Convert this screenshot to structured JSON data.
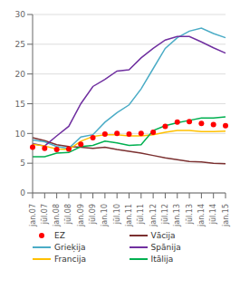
{
  "chart_data": {
    "type": "line",
    "categories": [
      "jan.07",
      "jūl.07",
      "jan.08",
      "jūl.08",
      "jan.09",
      "jūl.09",
      "jan.10",
      "jūl.10",
      "jan.11",
      "jūl.11",
      "jan.12",
      "jūl.12",
      "jan.13",
      "jūl.13",
      "jan.14",
      "jūl.14",
      "jan.15"
    ],
    "series": [
      {
        "name": "EZ",
        "color": "#ff0000",
        "line_style": "none",
        "marker": "circle",
        "values": [
          7.7,
          7.5,
          7.3,
          7.4,
          8.2,
          9.3,
          9.9,
          10.0,
          9.9,
          10.0,
          10.2,
          11.2,
          11.9,
          12.0,
          11.7,
          11.5,
          11.3
        ]
      },
      {
        "name": "Vācija",
        "color": "#7b3030",
        "line_style": "solid",
        "marker": "none",
        "values": [
          9.3,
          8.8,
          8.1,
          7.8,
          7.7,
          7.5,
          7.7,
          7.3,
          7.0,
          6.7,
          6.3,
          5.9,
          5.6,
          5.3,
          5.2,
          5.0,
          4.9
        ]
      },
      {
        "name": "Grieķija",
        "color": "#4bacc6",
        "line_style": "solid",
        "marker": "none",
        "values": [
          8.9,
          8.6,
          7.8,
          7.5,
          9.4,
          9.8,
          11.9,
          13.5,
          14.8,
          17.5,
          20.9,
          24.3,
          26.1,
          27.2,
          27.7,
          26.8,
          26.1
        ]
      },
      {
        "name": "Spānija",
        "color": "#7030a0",
        "line_style": "solid",
        "marker": "none",
        "values": [
          8.3,
          7.9,
          9.6,
          11.2,
          15.0,
          17.9,
          19.1,
          20.5,
          20.7,
          22.7,
          24.3,
          25.7,
          26.3,
          26.3,
          25.4,
          24.4,
          23.5
        ]
      },
      {
        "name": "Francija",
        "color": "#ffc000",
        "line_style": "solid",
        "marker": "none",
        "values": [
          8.2,
          7.9,
          7.4,
          7.3,
          8.7,
          9.5,
          9.8,
          9.8,
          9.6,
          9.6,
          9.8,
          10.2,
          10.5,
          10.5,
          10.3,
          10.3,
          10.4
        ]
      },
      {
        "name": "Itālija",
        "color": "#00b050",
        "line_style": "solid",
        "marker": "none",
        "values": [
          6.1,
          6.1,
          6.7,
          6.8,
          7.8,
          8.0,
          8.7,
          8.4,
          8.0,
          8.1,
          10.5,
          11.3,
          11.8,
          12.2,
          12.6,
          12.6,
          12.8
        ]
      }
    ],
    "ylim": [
      0,
      30
    ],
    "yticks": [
      0,
      5,
      10,
      15,
      20,
      25,
      30
    ],
    "grid": true,
    "legend": "bottom"
  }
}
